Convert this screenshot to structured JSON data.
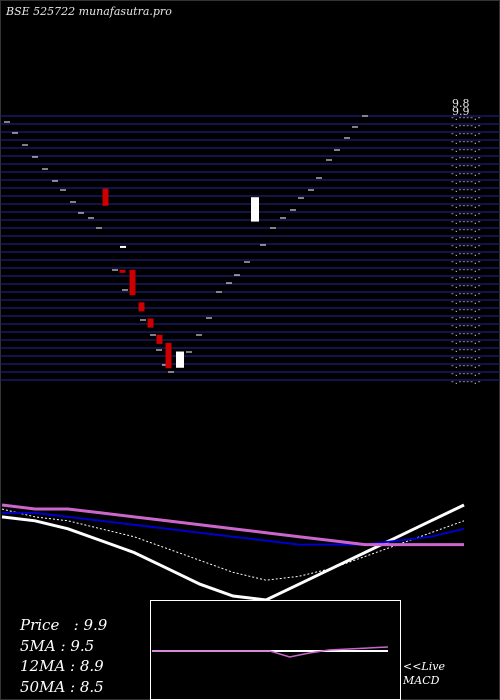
{
  "header": {
    "code": "BSE 525722",
    "site": "munafasutra.pro"
  },
  "stats": [
    {
      "label": "Price",
      "value": "9.9"
    },
    {
      "label": "5MA",
      "value": "9.5"
    },
    {
      "label": "12MA",
      "value": "8.9"
    },
    {
      "label": "50MA",
      "value": "8.5"
    }
  ],
  "macd_panel": {
    "live_label": "<<Live",
    "title": "MACD"
  },
  "colors": {
    "background": "#000000",
    "grid": "#1f1f7a",
    "bearish_candle": "#cc0000",
    "bullish_candle": "#ffffff",
    "ma_short": "#ffffff",
    "ma_medium": "#0000cc",
    "ma_long": "#cc66cc"
  },
  "chart_data": [
    {
      "type": "candlestick",
      "price_labels_visible": [
        "9.8",
        "9.9"
      ],
      "candles": [
        {
          "kind": "bearish",
          "open": 9.0,
          "close": 8.8
        },
        {
          "kind": "tick",
          "open": 8.3,
          "close": 8.3
        },
        {
          "kind": "bearish",
          "open": 8.0,
          "close": 8.0
        },
        {
          "kind": "bearish",
          "open": 8.0,
          "close": 7.7
        },
        {
          "kind": "bearish",
          "open": 7.6,
          "close": 7.5
        },
        {
          "kind": "bearish",
          "open": 7.4,
          "close": 7.3
        },
        {
          "kind": "bearish",
          "open": 7.2,
          "close": 7.1
        },
        {
          "kind": "bearish",
          "open": 7.1,
          "close": 6.8
        },
        {
          "kind": "bullish",
          "open": 6.8,
          "close": 7.0
        },
        {
          "kind": "bullish",
          "open": 8.6,
          "close": 8.9
        }
      ],
      "grid": true
    },
    {
      "type": "line",
      "series": [
        {
          "values": [
            9.6,
            9.5,
            9.3,
            9.0,
            8.7,
            8.3,
            7.9,
            7.6,
            7.5,
            7.9,
            8.3,
            8.7,
            9.1,
            9.5,
            9.9
          ]
        },
        {
          "values": [
            9.8,
            9.6,
            9.5,
            9.3,
            9.1,
            8.8,
            8.5,
            8.2,
            8.0,
            8.1,
            8.3,
            8.6,
            8.9,
            9.2,
            9.5
          ]
        },
        {
          "values": [
            9.7,
            9.7,
            9.6,
            9.5,
            9.4,
            9.3,
            9.2,
            9.1,
            9.0,
            8.9,
            8.9,
            8.9,
            9.0,
            9.1,
            9.3
          ]
        },
        {
          "values": [
            9.9,
            9.8,
            9.8,
            9.7,
            9.6,
            9.5,
            9.4,
            9.3,
            9.2,
            9.1,
            9.0,
            8.9,
            8.9,
            8.9,
            8.9
          ]
        }
      ]
    },
    {
      "type": "line",
      "title": "MACD",
      "series": [
        {
          "values": [
            0,
            0,
            0,
            0,
            0,
            0,
            0,
            0,
            0,
            0,
            0,
            0,
            0
          ]
        },
        {
          "values": [
            0,
            0,
            0,
            0,
            0,
            0,
            0,
            -0.3,
            -0.1,
            0.05,
            0.1,
            0.15,
            0.2
          ]
        }
      ]
    }
  ]
}
